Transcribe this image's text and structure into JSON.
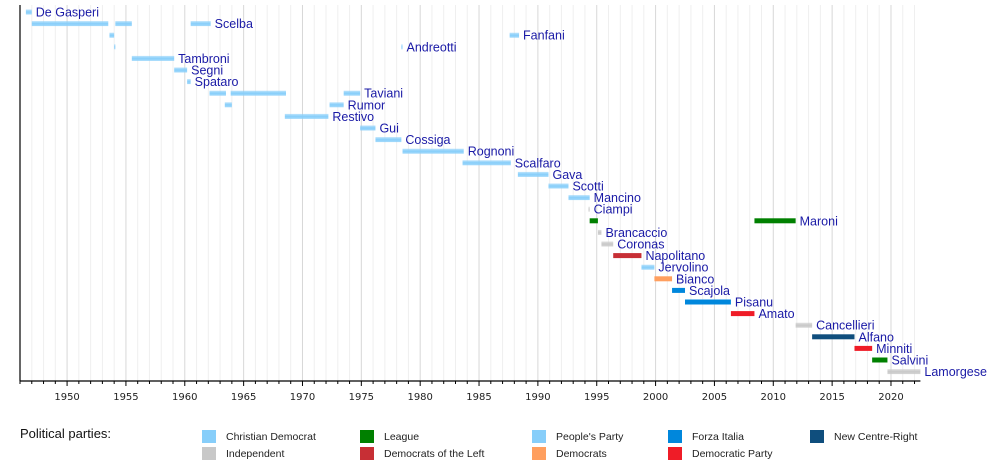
{
  "chart_data": {
    "type": "timeline",
    "title": "",
    "xlabel": "",
    "ylabel": "",
    "xlim": [
      1946,
      2022.5
    ],
    "x_ticks": [
      1950,
      1955,
      1960,
      1965,
      1970,
      1975,
      1980,
      1985,
      1990,
      1995,
      2000,
      2005,
      2010,
      2015,
      2020
    ],
    "grid": true,
    "parties": [
      {
        "name": "Christian Democrat",
        "color": "#87cefa"
      },
      {
        "name": "Independent",
        "color": "#c8c8c8"
      },
      {
        "name": "League",
        "color": "#008000"
      },
      {
        "name": "Democrats of the Left",
        "color": "#c72f35"
      },
      {
        "name": "People's Party",
        "color": "#87cefa"
      },
      {
        "name": "Democrats",
        "color": "#ff9f5f"
      },
      {
        "name": "Forza Italia",
        "color": "#0087dc"
      },
      {
        "name": "Democratic Party",
        "color": "#ef1c27"
      },
      {
        "name": "New Centre-Right",
        "color": "#0f4e7d"
      }
    ],
    "rows": [
      {
        "name": "De Gasperi",
        "terms": [
          {
            "start": 1946.5,
            "end": 1947.0,
            "party": "Christian Democrat"
          }
        ]
      },
      {
        "name": "Scelba",
        "terms": [
          {
            "start": 1947.0,
            "end": 1953.5,
            "party": "Christian Democrat"
          },
          {
            "start": 1954.1,
            "end": 1955.5,
            "party": "Christian Democrat"
          },
          {
            "start": 1960.5,
            "end": 1962.2,
            "party": "Christian Democrat"
          }
        ]
      },
      {
        "name": "Fanfani",
        "terms": [
          {
            "start": 1953.6,
            "end": 1954.0,
            "party": "Christian Democrat"
          },
          {
            "start": 1987.6,
            "end": 1988.4,
            "party": "Christian Democrat"
          }
        ]
      },
      {
        "name": "Andreotti",
        "terms": [
          {
            "start": 1954.0,
            "end": 1954.1,
            "party": "Christian Democrat"
          },
          {
            "start": 1978.4,
            "end": 1978.5,
            "party": "Christian Democrat"
          }
        ]
      },
      {
        "name": "Tambroni",
        "terms": [
          {
            "start": 1955.5,
            "end": 1959.1,
            "party": "Christian Democrat"
          }
        ]
      },
      {
        "name": "Segni",
        "terms": [
          {
            "start": 1959.1,
            "end": 1960.2,
            "party": "Christian Democrat"
          }
        ]
      },
      {
        "name": "Spataro",
        "terms": [
          {
            "start": 1960.2,
            "end": 1960.5,
            "party": "Christian Democrat"
          }
        ]
      },
      {
        "name": "Taviani",
        "terms": [
          {
            "start": 1962.1,
            "end": 1963.5,
            "party": "Christian Democrat"
          },
          {
            "start": 1963.9,
            "end": 1968.6,
            "party": "Christian Democrat"
          },
          {
            "start": 1973.5,
            "end": 1974.9,
            "party": "Christian Democrat"
          }
        ]
      },
      {
        "name": "Rumor",
        "terms": [
          {
            "start": 1963.4,
            "end": 1964.0,
            "party": "Christian Democrat"
          },
          {
            "start": 1972.3,
            "end": 1973.5,
            "party": "Christian Democrat"
          }
        ]
      },
      {
        "name": "Restivo",
        "terms": [
          {
            "start": 1968.5,
            "end": 1972.2,
            "party": "Christian Democrat"
          }
        ]
      },
      {
        "name": "Gui",
        "terms": [
          {
            "start": 1974.9,
            "end": 1976.2,
            "party": "Christian Democrat"
          }
        ]
      },
      {
        "name": "Cossiga",
        "terms": [
          {
            "start": 1976.2,
            "end": 1978.4,
            "party": "Christian Democrat"
          }
        ]
      },
      {
        "name": "Rognoni",
        "terms": [
          {
            "start": 1978.5,
            "end": 1983.7,
            "party": "Christian Democrat"
          }
        ]
      },
      {
        "name": "Scalfaro",
        "terms": [
          {
            "start": 1983.6,
            "end": 1987.7,
            "party": "Christian Democrat"
          }
        ]
      },
      {
        "name": "Gava",
        "terms": [
          {
            "start": 1988.3,
            "end": 1990.9,
            "party": "Christian Democrat"
          }
        ]
      },
      {
        "name": "Scotti",
        "terms": [
          {
            "start": 1990.9,
            "end": 1992.6,
            "party": "Christian Democrat"
          }
        ]
      },
      {
        "name": "Mancino",
        "terms": [
          {
            "start": 1992.6,
            "end": 1994.4,
            "party": "Christian Democrat"
          }
        ]
      },
      {
        "name": "Ciampi",
        "terms": [
          {
            "start": 1994.3,
            "end": 1994.4,
            "party": "Independent"
          }
        ]
      },
      {
        "name": "Maroni",
        "terms": [
          {
            "start": 1994.4,
            "end": 1995.1,
            "party": "League"
          },
          {
            "start": 2008.4,
            "end": 2011.9,
            "party": "League"
          }
        ]
      },
      {
        "name": "Brancaccio",
        "terms": [
          {
            "start": 1995.1,
            "end": 1995.4,
            "party": "Independent"
          }
        ]
      },
      {
        "name": "Coronas",
        "terms": [
          {
            "start": 1995.4,
            "end": 1996.4,
            "party": "Independent"
          }
        ]
      },
      {
        "name": "Napolitano",
        "terms": [
          {
            "start": 1996.4,
            "end": 1998.8,
            "party": "Democrats of the Left"
          }
        ]
      },
      {
        "name": "Jervolino",
        "terms": [
          {
            "start": 1998.8,
            "end": 1999.9,
            "party": "People's Party"
          }
        ]
      },
      {
        "name": "Bianco",
        "terms": [
          {
            "start": 1999.9,
            "end": 2001.4,
            "party": "Democrats"
          }
        ]
      },
      {
        "name": "Scajola",
        "terms": [
          {
            "start": 2001.4,
            "end": 2002.5,
            "party": "Forza Italia"
          }
        ]
      },
      {
        "name": "Pisanu",
        "terms": [
          {
            "start": 2002.5,
            "end": 2006.4,
            "party": "Forza Italia"
          }
        ]
      },
      {
        "name": "Amato",
        "terms": [
          {
            "start": 2006.4,
            "end": 2008.4,
            "party": "Democratic Party"
          }
        ]
      },
      {
        "name": "Cancellieri",
        "terms": [
          {
            "start": 2011.9,
            "end": 2013.3,
            "party": "Independent"
          }
        ]
      },
      {
        "name": "Alfano",
        "terms": [
          {
            "start": 2013.3,
            "end": 2016.9,
            "party": "New Centre-Right"
          }
        ]
      },
      {
        "name": "Minniti",
        "terms": [
          {
            "start": 2016.9,
            "end": 2018.4,
            "party": "Democratic Party"
          }
        ]
      },
      {
        "name": "Salvini",
        "terms": [
          {
            "start": 2018.4,
            "end": 2019.7,
            "party": "League"
          }
        ]
      },
      {
        "name": "Lamorgese",
        "terms": [
          {
            "start": 2019.7,
            "end": 2022.5,
            "party": "Independent"
          }
        ]
      }
    ],
    "label_positions": {
      "Scelba": 1962.2,
      "Fanfani": 1988.4,
      "Andreotti": 1978.5,
      "Taviani": 1974.9,
      "Rumor": 1973.5,
      "Maroni": 2011.9
    }
  },
  "legend": {
    "title": "Political parties:",
    "items": [
      "Christian Democrat",
      "Independent",
      "League",
      "Democrats of the Left",
      "People's Party",
      "Democrats",
      "Forza Italia",
      "Democratic Party",
      "New Centre-Right"
    ]
  }
}
